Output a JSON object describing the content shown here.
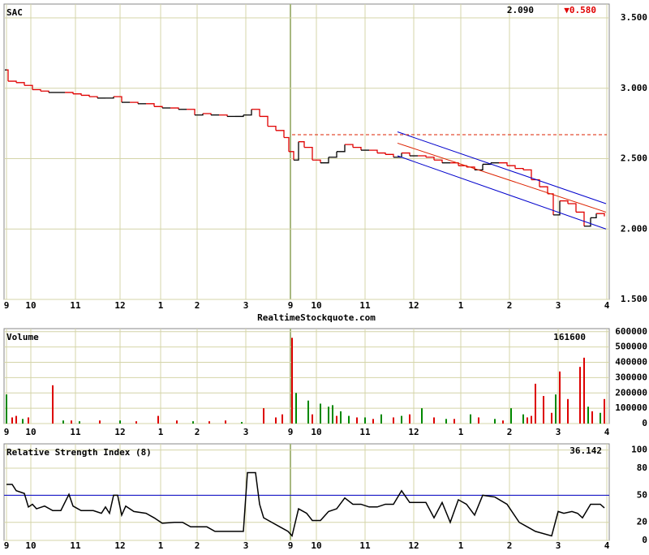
{
  "chart_data": [
    {
      "type": "step",
      "title": "SAC",
      "price": "2.090",
      "change": "▼0.580",
      "change_color": "#e00000",
      "source": "RealtimeStockquote.com",
      "xlim": [
        0,
        740
      ],
      "xticks": [
        {
          "value": 0,
          "label": "9"
        },
        {
          "value": 30,
          "label": "10"
        },
        {
          "value": 85,
          "label": "11"
        },
        {
          "value": 140,
          "label": "12"
        },
        {
          "value": 190,
          "label": "1"
        },
        {
          "value": 235,
          "label": "2"
        },
        {
          "value": 295,
          "label": "3"
        },
        {
          "value": 350,
          "label": "9"
        },
        {
          "value": 382,
          "label": "10"
        },
        {
          "value": 442,
          "label": "11"
        },
        {
          "value": 502,
          "label": "12"
        },
        {
          "value": 560,
          "label": "1"
        },
        {
          "value": 620,
          "label": "2"
        },
        {
          "value": 680,
          "label": "3"
        },
        {
          "value": 740,
          "label": "4"
        }
      ],
      "ylim": [
        1.5,
        3.5
      ],
      "yticks": [
        {
          "value": 1.5,
          "label": "1.500"
        },
        {
          "value": 2,
          "label": "2.000"
        },
        {
          "value": 2.5,
          "label": "2.500"
        },
        {
          "value": 3,
          "label": "3.000"
        },
        {
          "value": 3.5,
          "label": "3.500"
        }
      ],
      "grid": true,
      "up_color": "#000000",
      "down_color": "#e00000",
      "x": [
        0,
        2,
        12,
        22,
        32,
        42,
        52,
        62,
        72,
        82,
        92,
        102,
        112,
        122,
        132,
        142,
        152,
        162,
        172,
        182,
        192,
        202,
        212,
        222,
        232,
        242,
        252,
        262,
        272,
        282,
        292,
        302,
        312,
        322,
        332,
        342,
        348,
        354,
        360,
        367,
        377,
        387,
        397,
        407,
        417,
        427,
        437,
        447,
        457,
        467,
        477,
        487,
        497,
        507,
        517,
        527,
        537,
        547,
        557,
        567,
        577,
        587,
        597,
        607,
        617,
        627,
        637,
        647,
        657,
        667,
        674,
        682,
        692,
        702,
        712,
        720,
        727,
        737
      ],
      "values": [
        3.13,
        3.05,
        3.04,
        3.02,
        2.99,
        2.98,
        2.97,
        2.97,
        2.97,
        2.96,
        2.95,
        2.94,
        2.93,
        2.93,
        2.94,
        2.9,
        2.9,
        2.89,
        2.89,
        2.87,
        2.86,
        2.86,
        2.85,
        2.85,
        2.81,
        2.82,
        2.81,
        2.81,
        2.8,
        2.8,
        2.81,
        2.85,
        2.8,
        2.73,
        2.7,
        2.65,
        2.55,
        2.49,
        2.62,
        2.58,
        2.49,
        2.47,
        2.51,
        2.55,
        2.6,
        2.58,
        2.56,
        2.56,
        2.54,
        2.53,
        2.51,
        2.54,
        2.52,
        2.52,
        2.51,
        2.49,
        2.47,
        2.47,
        2.45,
        2.44,
        2.42,
        2.46,
        2.47,
        2.47,
        2.45,
        2.43,
        2.42,
        2.35,
        2.3,
        2.25,
        2.1,
        2.2,
        2.18,
        2.12,
        2.02,
        2.08,
        2.11,
        2.09
      ],
      "lines": [
        {
          "color": "#0000cc",
          "dash": false,
          "x": [
            482,
            739
          ],
          "values": [
            2.69,
            2.18
          ]
        },
        {
          "color": "#0000cc",
          "dash": false,
          "x": [
            482,
            739
          ],
          "values": [
            2.52,
            2.0
          ]
        },
        {
          "color": "#dd2200",
          "dash": false,
          "x": [
            482,
            739
          ],
          "values": [
            2.61,
            2.12
          ]
        },
        {
          "color": "#dd2200",
          "dash": true,
          "x": [
            352,
            740
          ],
          "values": [
            2.67,
            2.67
          ]
        }
      ]
    },
    {
      "type": "volume",
      "title": "Volume",
      "last": "161600",
      "xlim": [
        0,
        740
      ],
      "xticks": [
        {
          "value": 0,
          "label": "9"
        },
        {
          "value": 30,
          "label": "10"
        },
        {
          "value": 85,
          "label": "11"
        },
        {
          "value": 140,
          "label": "12"
        },
        {
          "value": 190,
          "label": "1"
        },
        {
          "value": 235,
          "label": "2"
        },
        {
          "value": 295,
          "label": "3"
        },
        {
          "value": 350,
          "label": "9"
        },
        {
          "value": 382,
          "label": "10"
        },
        {
          "value": 442,
          "label": "11"
        },
        {
          "value": 502,
          "label": "12"
        },
        {
          "value": 560,
          "label": "1"
        },
        {
          "value": 620,
          "label": "2"
        },
        {
          "value": 680,
          "label": "3"
        },
        {
          "value": 740,
          "label": "4"
        }
      ],
      "ylim": [
        0,
        620000
      ],
      "yticks": [
        0,
        100000,
        200000,
        300000,
        400000,
        500000,
        600000
      ],
      "grid": true,
      "series": [
        {
          "color": "#008800",
          "x": [
            0,
            20,
            70,
            90,
            140,
            230,
            290,
            357,
            372,
            387,
            397,
            402,
            412,
            422,
            442,
            462,
            487,
            512,
            542,
            572,
            602,
            622,
            637,
            677,
            717,
            732
          ],
          "values": [
            190000,
            30000,
            20000,
            15000,
            20000,
            15000,
            10000,
            200000,
            150000,
            130000,
            110000,
            120000,
            80000,
            50000,
            40000,
            60000,
            50000,
            100000,
            30000,
            60000,
            30000,
            100000,
            60000,
            190000,
            110000,
            70000
          ]
        },
        {
          "color": "#dd0000",
          "x": [
            7,
            12,
            27,
            57,
            80,
            115,
            160,
            187,
            210,
            250,
            270,
            317,
            332,
            340,
            352,
            377,
            407,
            432,
            452,
            477,
            497,
            527,
            552,
            582,
            612,
            642,
            647,
            652,
            662,
            672,
            682,
            692,
            707,
            712,
            722,
            737
          ],
          "values": [
            40000,
            50000,
            40000,
            250000,
            20000,
            20000,
            15000,
            50000,
            20000,
            15000,
            20000,
            100000,
            40000,
            60000,
            560000,
            60000,
            50000,
            40000,
            30000,
            40000,
            60000,
            40000,
            30000,
            40000,
            20000,
            40000,
            50000,
            260000,
            180000,
            70000,
            340000,
            160000,
            370000,
            430000,
            80000,
            160000
          ]
        }
      ]
    },
    {
      "type": "line",
      "title": "Relative Strength Index (8)",
      "last": "36.142",
      "xlim": [
        0,
        740
      ],
      "xticks": [
        {
          "value": 0,
          "label": "9"
        },
        {
          "value": 30,
          "label": "10"
        },
        {
          "value": 85,
          "label": "11"
        },
        {
          "value": 140,
          "label": "12"
        },
        {
          "value": 190,
          "label": "1"
        },
        {
          "value": 235,
          "label": "2"
        },
        {
          "value": 295,
          "label": "3"
        },
        {
          "value": 350,
          "label": "9"
        },
        {
          "value": 382,
          "label": "10"
        },
        {
          "value": 442,
          "label": "11"
        },
        {
          "value": 502,
          "label": "12"
        },
        {
          "value": 560,
          "label": "1"
        },
        {
          "value": 620,
          "label": "2"
        },
        {
          "value": 680,
          "label": "3"
        },
        {
          "value": 740,
          "label": "4"
        }
      ],
      "ylim": [
        0,
        106
      ],
      "yticks": [
        0,
        20,
        50,
        80,
        100
      ],
      "grid": true,
      "reference": 50,
      "reference_color": "#0000cc",
      "color": "#000000",
      "x": [
        0,
        7,
        12,
        22,
        27,
        32,
        37,
        47,
        57,
        67,
        77,
        82,
        92,
        107,
        117,
        122,
        127,
        132,
        137,
        142,
        147,
        157,
        172,
        182,
        192,
        207,
        217,
        227,
        247,
        257,
        277,
        292,
        297,
        307,
        312,
        317,
        327,
        337,
        347,
        352,
        360,
        370,
        377,
        387,
        397,
        407,
        417,
        427,
        437,
        447,
        457,
        467,
        477,
        487,
        497,
        507,
        517,
        527,
        537,
        547,
        557,
        567,
        577,
        587,
        602,
        617,
        632,
        642,
        652,
        672,
        680,
        687,
        697,
        704,
        710,
        720,
        732,
        737
      ],
      "values": [
        62,
        62,
        55,
        52,
        37,
        40,
        35,
        38,
        33,
        33,
        51,
        38,
        33,
        33,
        30,
        37,
        30,
        50,
        50,
        28,
        38,
        32,
        30,
        25,
        19,
        20,
        20,
        15,
        15,
        10,
        10,
        10,
        75,
        75,
        40,
        25,
        20,
        15,
        10,
        5,
        35,
        30,
        22,
        22,
        32,
        35,
        47,
        40,
        40,
        37,
        37,
        40,
        40,
        55,
        42,
        42,
        42,
        25,
        42,
        20,
        45,
        40,
        28,
        50,
        48,
        40,
        20,
        15,
        10,
        5,
        32,
        30,
        32,
        30,
        25,
        40,
        40,
        36
      ]
    }
  ]
}
